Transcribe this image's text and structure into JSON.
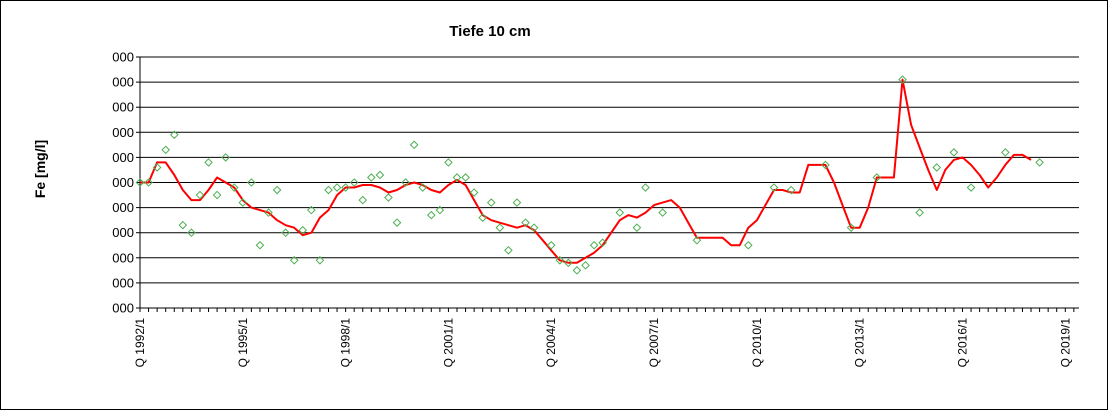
{
  "chart_data": {
    "type": "line",
    "title": "Tiefe  10 cm",
    "ylabel": "Fe [mg/l]",
    "xlabel": "",
    "yticks": [
      "000",
      "000",
      "000",
      "000",
      "000",
      "000",
      "000",
      "000",
      "000",
      "000",
      "000"
    ],
    "ylim": [
      0,
      10
    ],
    "xlim": [
      1992.0,
      2019.4
    ],
    "xticks": [
      {
        "label": "Q 1992/1",
        "x": 1992.0
      },
      {
        "label": "Q 1995/1",
        "x": 1995.0
      },
      {
        "label": "Q 1998/1",
        "x": 1998.0
      },
      {
        "label": "Q 2001/1",
        "x": 2001.0
      },
      {
        "label": "Q 2004/1",
        "x": 2004.0
      },
      {
        "label": "Q 2007/1",
        "x": 2007.0
      },
      {
        "label": "Q 2010/1",
        "x": 2010.0
      },
      {
        "label": "Q 2013/1",
        "x": 2013.0
      },
      {
        "label": "Q 2016/1",
        "x": 2016.0
      },
      {
        "label": "Q 2019/1",
        "x": 2019.0
      }
    ],
    "grid": true,
    "colors": {
      "line": "#ff0000",
      "markers": "#4caf50",
      "plot_background": "#ffffff",
      "gridline": "#000000"
    },
    "series": [
      {
        "style": "markers",
        "points": [
          [
            1992.0,
            5.0
          ],
          [
            1992.25,
            5.0
          ],
          [
            1992.5,
            5.6
          ],
          [
            1992.75,
            6.3
          ],
          [
            1993.0,
            6.9
          ],
          [
            1993.25,
            3.3
          ],
          [
            1993.5,
            3.0
          ],
          [
            1993.75,
            4.5
          ],
          [
            1994.0,
            5.8
          ],
          [
            1994.25,
            4.5
          ],
          [
            1994.5,
            6.0
          ],
          [
            1994.75,
            4.8
          ],
          [
            1995.0,
            4.2
          ],
          [
            1995.25,
            5.0
          ],
          [
            1995.5,
            2.5
          ],
          [
            1995.75,
            3.8
          ],
          [
            1996.0,
            4.7
          ],
          [
            1996.25,
            3.0
          ],
          [
            1996.5,
            1.9
          ],
          [
            1996.75,
            3.1
          ],
          [
            1997.0,
            3.9
          ],
          [
            1997.25,
            1.9
          ],
          [
            1997.5,
            4.7
          ],
          [
            1997.75,
            4.8
          ],
          [
            1998.0,
            4.8
          ],
          [
            1998.25,
            5.0
          ],
          [
            1998.5,
            4.3
          ],
          [
            1998.75,
            5.2
          ],
          [
            1999.0,
            5.3
          ],
          [
            1999.25,
            4.4
          ],
          [
            1999.5,
            3.4
          ],
          [
            1999.75,
            5.0
          ],
          [
            2000.0,
            6.5
          ],
          [
            2000.25,
            4.8
          ],
          [
            2000.5,
            3.7
          ],
          [
            2000.75,
            3.9
          ],
          [
            2001.0,
            5.8
          ],
          [
            2001.25,
            5.2
          ],
          [
            2001.5,
            5.2
          ],
          [
            2001.75,
            4.6
          ],
          [
            2002.0,
            3.6
          ],
          [
            2002.25,
            4.2
          ],
          [
            2002.5,
            3.2
          ],
          [
            2002.75,
            2.3
          ],
          [
            2003.0,
            4.2
          ],
          [
            2003.25,
            3.4
          ],
          [
            2003.5,
            3.2
          ],
          [
            2004.0,
            2.5
          ],
          [
            2004.25,
            1.9
          ],
          [
            2004.5,
            1.8
          ],
          [
            2004.75,
            1.5
          ],
          [
            2005.0,
            1.7
          ],
          [
            2005.25,
            2.5
          ],
          [
            2005.5,
            2.6
          ],
          [
            2006.0,
            3.8
          ],
          [
            2006.5,
            3.2
          ],
          [
            2006.75,
            4.8
          ],
          [
            2007.25,
            3.8
          ],
          [
            2008.25,
            2.7
          ],
          [
            2009.75,
            2.5
          ],
          [
            2010.5,
            4.8
          ],
          [
            2011.0,
            4.7
          ],
          [
            2012.0,
            5.7
          ],
          [
            2012.75,
            3.2
          ],
          [
            2013.5,
            5.2
          ],
          [
            2014.25,
            9.1
          ],
          [
            2014.75,
            3.8
          ],
          [
            2015.25,
            5.6
          ],
          [
            2015.75,
            6.2
          ],
          [
            2016.25,
            4.8
          ],
          [
            2017.25,
            6.2
          ],
          [
            2018.25,
            5.8
          ]
        ]
      },
      {
        "style": "line",
        "points": [
          [
            1992.0,
            5.0
          ],
          [
            1992.25,
            5.0
          ],
          [
            1992.5,
            5.8
          ],
          [
            1992.75,
            5.8
          ],
          [
            1993.0,
            5.3
          ],
          [
            1993.25,
            4.7
          ],
          [
            1993.5,
            4.3
          ],
          [
            1993.75,
            4.3
          ],
          [
            1994.0,
            4.7
          ],
          [
            1994.25,
            5.2
          ],
          [
            1994.5,
            5.0
          ],
          [
            1994.75,
            4.8
          ],
          [
            1995.0,
            4.3
          ],
          [
            1995.25,
            4.0
          ],
          [
            1995.5,
            3.9
          ],
          [
            1995.75,
            3.8
          ],
          [
            1996.0,
            3.5
          ],
          [
            1996.25,
            3.3
          ],
          [
            1996.5,
            3.2
          ],
          [
            1996.75,
            2.9
          ],
          [
            1997.0,
            3.0
          ],
          [
            1997.25,
            3.6
          ],
          [
            1997.5,
            3.9
          ],
          [
            1997.75,
            4.5
          ],
          [
            1998.0,
            4.8
          ],
          [
            1998.25,
            4.8
          ],
          [
            1998.5,
            4.9
          ],
          [
            1998.75,
            4.9
          ],
          [
            1999.0,
            4.8
          ],
          [
            1999.25,
            4.6
          ],
          [
            1999.5,
            4.7
          ],
          [
            1999.75,
            4.9
          ],
          [
            2000.0,
            5.0
          ],
          [
            2000.25,
            4.9
          ],
          [
            2000.5,
            4.7
          ],
          [
            2000.75,
            4.6
          ],
          [
            2001.0,
            4.9
          ],
          [
            2001.25,
            5.1
          ],
          [
            2001.5,
            4.9
          ],
          [
            2001.75,
            4.3
          ],
          [
            2002.0,
            3.7
          ],
          [
            2002.25,
            3.5
          ],
          [
            2002.5,
            3.4
          ],
          [
            2002.75,
            3.3
          ],
          [
            2003.0,
            3.2
          ],
          [
            2003.25,
            3.3
          ],
          [
            2003.5,
            3.1
          ],
          [
            2003.75,
            2.7
          ],
          [
            2004.0,
            2.3
          ],
          [
            2004.25,
            1.9
          ],
          [
            2004.5,
            1.8
          ],
          [
            2004.75,
            1.8
          ],
          [
            2005.0,
            2.0
          ],
          [
            2005.25,
            2.2
          ],
          [
            2005.5,
            2.5
          ],
          [
            2005.75,
            3.0
          ],
          [
            2006.0,
            3.5
          ],
          [
            2006.25,
            3.7
          ],
          [
            2006.5,
            3.6
          ],
          [
            2006.75,
            3.8
          ],
          [
            2007.0,
            4.1
          ],
          [
            2007.25,
            4.2
          ],
          [
            2007.5,
            4.3
          ],
          [
            2007.75,
            4.0
          ],
          [
            2008.0,
            3.4
          ],
          [
            2008.25,
            2.8
          ],
          [
            2008.5,
            2.8
          ],
          [
            2008.75,
            2.8
          ],
          [
            2009.0,
            2.8
          ],
          [
            2009.25,
            2.5
          ],
          [
            2009.5,
            2.5
          ],
          [
            2009.75,
            3.2
          ],
          [
            2010.0,
            3.5
          ],
          [
            2010.25,
            4.1
          ],
          [
            2010.5,
            4.7
          ],
          [
            2010.75,
            4.7
          ],
          [
            2011.0,
            4.6
          ],
          [
            2011.25,
            4.6
          ],
          [
            2011.5,
            5.7
          ],
          [
            2011.75,
            5.7
          ],
          [
            2012.0,
            5.7
          ],
          [
            2012.25,
            5.0
          ],
          [
            2012.5,
            4.1
          ],
          [
            2012.75,
            3.2
          ],
          [
            2013.0,
            3.2
          ],
          [
            2013.25,
            4.0
          ],
          [
            2013.5,
            5.2
          ],
          [
            2013.75,
            5.2
          ],
          [
            2014.0,
            5.2
          ],
          [
            2014.25,
            9.1
          ],
          [
            2014.5,
            7.3
          ],
          [
            2014.75,
            6.4
          ],
          [
            2015.0,
            5.5
          ],
          [
            2015.25,
            4.7
          ],
          [
            2015.5,
            5.5
          ],
          [
            2015.75,
            5.9
          ],
          [
            2016.0,
            6.0
          ],
          [
            2016.25,
            5.7
          ],
          [
            2016.5,
            5.3
          ],
          [
            2016.75,
            4.8
          ],
          [
            2017.0,
            5.2
          ],
          [
            2017.25,
            5.7
          ],
          [
            2017.5,
            6.1
          ],
          [
            2017.75,
            6.1
          ],
          [
            2018.0,
            5.9
          ]
        ]
      }
    ]
  }
}
